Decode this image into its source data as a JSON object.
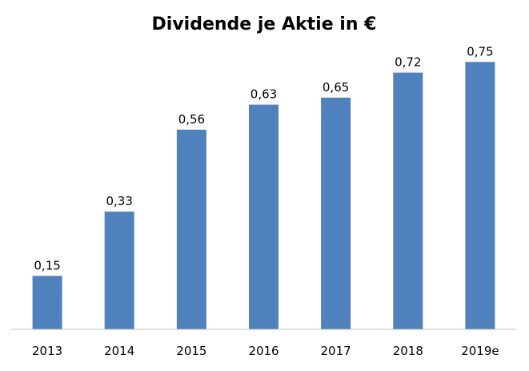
{
  "chart_data": {
    "type": "bar",
    "title": "Dividende je Aktie in €",
    "categories": [
      "2013",
      "2014",
      "2015",
      "2016",
      "2017",
      "2018",
      "2019e"
    ],
    "values": [
      0.15,
      0.33,
      0.56,
      0.63,
      0.65,
      0.72,
      0.75
    ],
    "value_labels": [
      "0,15",
      "0,33",
      "0,56",
      "0,63",
      "0,65",
      "0,72",
      "0,75"
    ],
    "xlabel": "",
    "ylabel": "",
    "ylim": [
      0,
      0.8
    ],
    "grid": false,
    "legend": "none",
    "bar_color": "#4f81bd"
  }
}
